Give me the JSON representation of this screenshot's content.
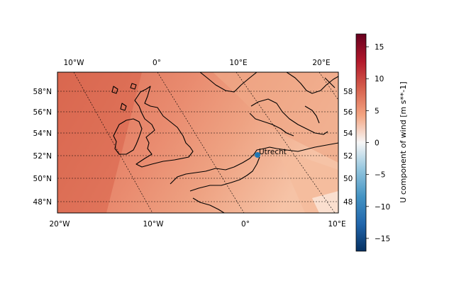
{
  "map": {
    "bottom_lon_labels": [
      "20°W",
      "10°W",
      "0°",
      "10°E"
    ],
    "top_lon_labels": [
      "10°W",
      "0°",
      "10°E",
      "20°E"
    ],
    "left_lat_labels": [
      "58°N",
      "56°N",
      "54°N",
      "52°N",
      "50°N",
      "48°N"
    ],
    "right_lat_labels": [
      "58",
      "56",
      "54",
      "52",
      "50",
      "48"
    ],
    "marker": {
      "label": "Utrecht",
      "color": "#1f77b4"
    }
  },
  "colorbar": {
    "label": "U component of wind [m s**-1]",
    "range": [
      -17,
      17
    ],
    "ticks": [
      15,
      10,
      5,
      0,
      -5,
      -10,
      -15
    ],
    "tick_labels": [
      "15",
      "10",
      "5",
      "0",
      "−5",
      "−10",
      "−15"
    ],
    "colormap": "RdBu_r"
  },
  "chart_data": {
    "type": "heatmap",
    "title": "",
    "variable": "U component of wind [m s**-1]",
    "value_range": [
      -17,
      17
    ],
    "field_values_approx": [
      6,
      10
    ],
    "points": [
      {
        "name": "Utrecht",
        "lat": 52.1,
        "lon": 5.1
      }
    ]
  }
}
